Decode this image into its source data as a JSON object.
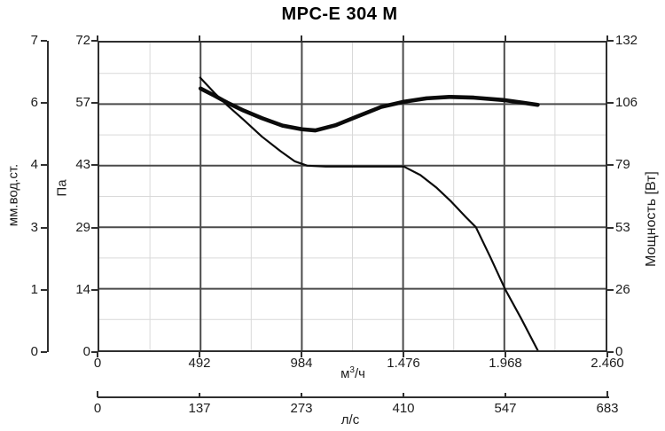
{
  "title": "MPC-E 304 M",
  "axes": {
    "mm": {
      "label": "мм.вод.ст.",
      "ticks": [
        "7",
        "6",
        "4",
        "3",
        "1",
        "0"
      ]
    },
    "pa": {
      "label": "Па",
      "ticks": [
        "72",
        "57",
        "43",
        "29",
        "14",
        "0"
      ]
    },
    "power": {
      "label": "Мощность [Вт]",
      "ticks": [
        "132",
        "106",
        "79",
        "53",
        "26",
        "0"
      ]
    },
    "flow_m3h": {
      "label": "м³/ч",
      "ticks": [
        "0",
        "492",
        "984",
        "1.476",
        "1.968",
        "2.460"
      ]
    },
    "flow_ls": {
      "label": "л/с",
      "ticks": [
        "0",
        "137",
        "273",
        "410",
        "547",
        "683"
      ]
    }
  },
  "colors": {
    "curve": "#0b0b0b",
    "axis": "#2f2f2f",
    "grid_major": "#4a4a4a",
    "grid_minor": "#d9d9d9",
    "background": "#ffffff"
  },
  "chart_data": {
    "type": "line",
    "title": "MPC-E 304 M",
    "grid": "major+minor",
    "legend": "none",
    "x_axis": {
      "label": "м³/ч",
      "range": [
        0,
        2460
      ],
      "ticks": [
        0,
        492,
        984,
        1476,
        1968,
        2460
      ]
    },
    "x_axis_secondary": {
      "label": "л/с",
      "range": [
        0,
        683
      ],
      "ticks": [
        0,
        137,
        273,
        410,
        547,
        683
      ]
    },
    "y_axis_left": {
      "label": "Па",
      "range": [
        0,
        72
      ],
      "ticks": [
        0,
        14,
        29,
        43,
        57,
        72
      ]
    },
    "y_axis_left_secondary": {
      "label": "мм.вод.ст.",
      "range": [
        0,
        7.34
      ],
      "ticks": [
        0,
        1,
        3,
        4,
        6,
        7
      ]
    },
    "y_axis_right": {
      "label": "Мощность [Вт]",
      "range": [
        0,
        132
      ],
      "ticks": [
        0,
        26,
        53,
        79,
        106,
        132
      ]
    },
    "series": [
      {
        "name": "давление (Па)",
        "axis": "left",
        "style": "thin",
        "points": [
          [
            490,
            63.8
          ],
          [
            560,
            60.2
          ],
          [
            620,
            57.4
          ],
          [
            700,
            54.0
          ],
          [
            790,
            50.0
          ],
          [
            880,
            46.6
          ],
          [
            950,
            44.2
          ],
          [
            1010,
            43.2
          ],
          [
            1100,
            43.0
          ],
          [
            1300,
            43.0
          ],
          [
            1480,
            43.0
          ],
          [
            1560,
            41.0
          ],
          [
            1640,
            38.0
          ],
          [
            1710,
            34.8
          ],
          [
            1780,
            31.2
          ],
          [
            1830,
            28.8
          ],
          [
            1900,
            21.8
          ],
          [
            1972,
            14.3
          ],
          [
            2050,
            7.4
          ],
          [
            2130,
            0
          ]
        ]
      },
      {
        "name": "мощность (Вт)",
        "axis": "right",
        "style": "thick",
        "points": [
          [
            492,
            112.3
          ],
          [
            560,
            109.2
          ],
          [
            620,
            106.3
          ],
          [
            700,
            102.9
          ],
          [
            790,
            99.6
          ],
          [
            890,
            96.4
          ],
          [
            984,
            94.8
          ],
          [
            1050,
            94.3
          ],
          [
            1150,
            96.6
          ],
          [
            1250,
            100.2
          ],
          [
            1370,
            104.4
          ],
          [
            1480,
            106.6
          ],
          [
            1590,
            108.1
          ],
          [
            1700,
            108.7
          ],
          [
            1820,
            108.4
          ],
          [
            1970,
            107.3
          ],
          [
            2060,
            106.2
          ],
          [
            2130,
            105.3
          ]
        ]
      }
    ]
  }
}
